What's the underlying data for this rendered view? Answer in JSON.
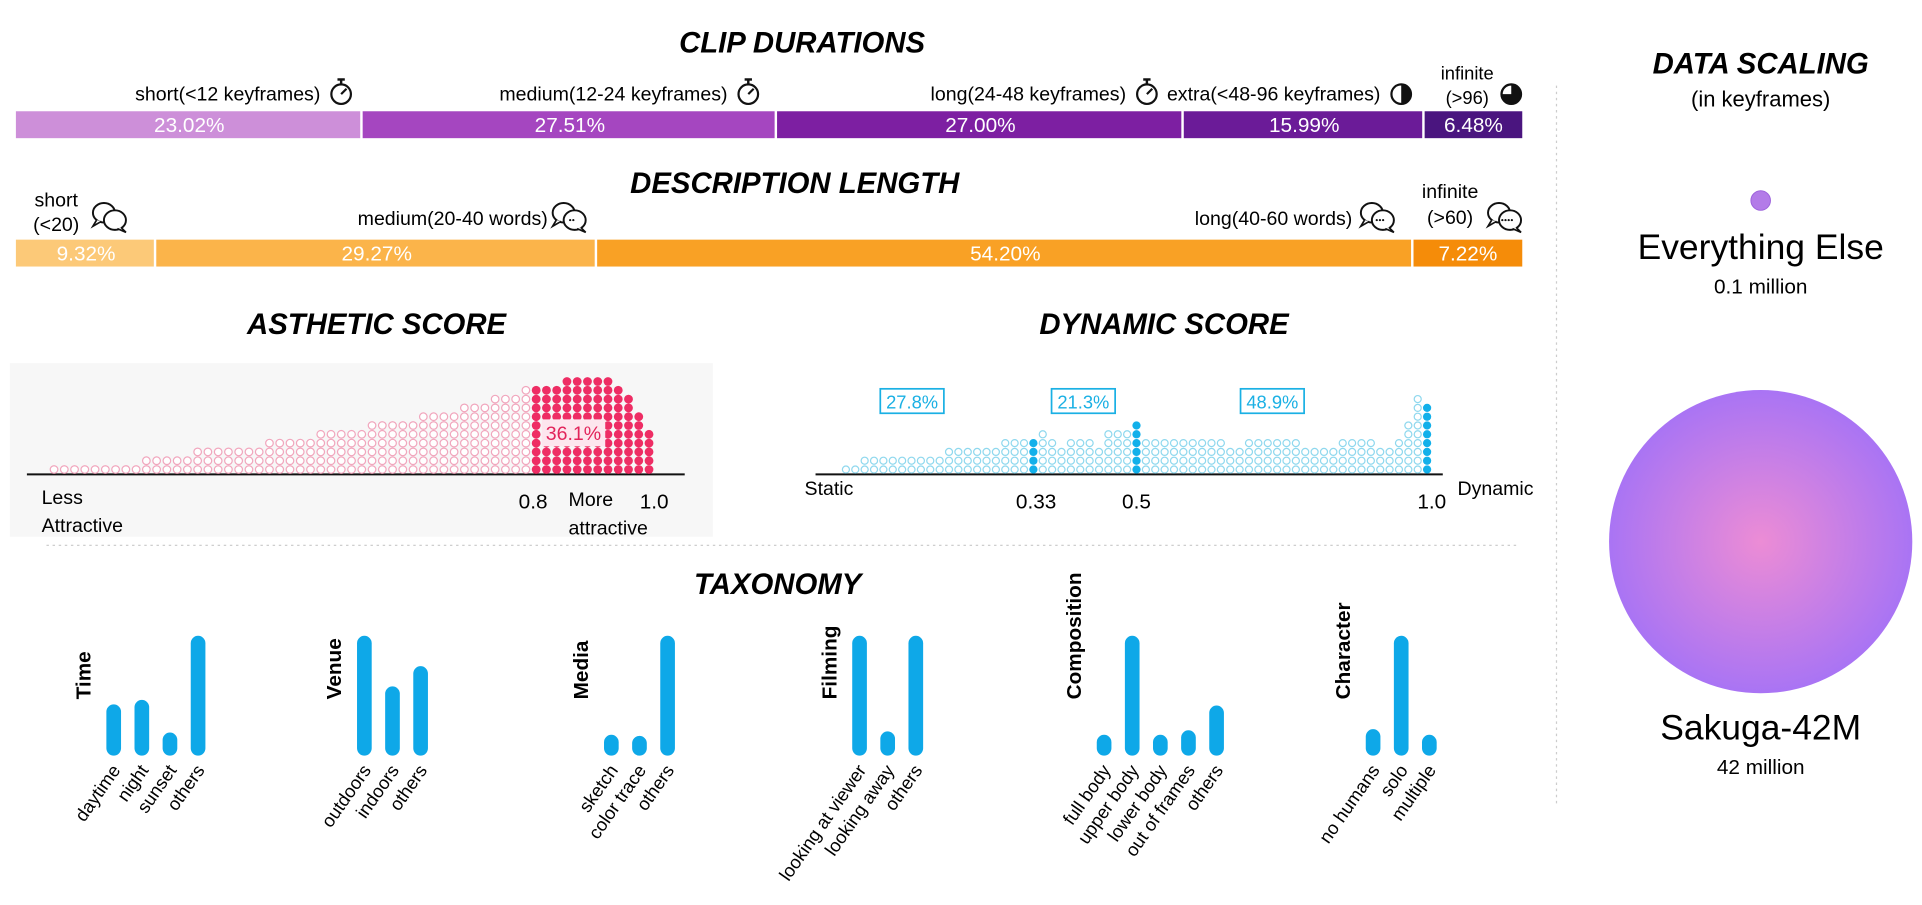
{
  "clip_durations": {
    "title": "CLIP DURATIONS",
    "segments": [
      {
        "label": "short(<12 keyframes)",
        "value_text": "23.02%",
        "value": 23.02,
        "color": "#cd8fd9",
        "icon": "stopwatch-icon"
      },
      {
        "label": "medium(12-24 keyframes)",
        "value_text": "27.51%",
        "value": 27.51,
        "color": "#a546c0",
        "icon": "stopwatch-icon"
      },
      {
        "label": "long(24-48 keyframes)",
        "value_text": "27.00%",
        "value": 27.0,
        "color": "#7d1fa2",
        "icon": "stopwatch-icon"
      },
      {
        "label": "extra(<48-96 keyframes)",
        "value_text": "15.99%",
        "value": 15.99,
        "color": "#6b1b98",
        "icon": "half-clock-icon"
      },
      {
        "label_lines": [
          "infinite",
          "(>96)"
        ],
        "value_text": "6.48%",
        "value": 6.48,
        "color": "#4a157f",
        "icon": "full-clock-icon"
      }
    ]
  },
  "description_length": {
    "title": "DESCRIPTION LENGTH",
    "segments": [
      {
        "label_lines": [
          "short",
          "(<20)"
        ],
        "value_text": "9.32%",
        "value": 9.32,
        "color": "#fcc978",
        "icon": "chat-bubble-icon"
      },
      {
        "label": "medium(20-40 words)",
        "value_text": "29.27%",
        "value": 29.27,
        "color": "#fbb44a",
        "icon": "chat-bubble-icon"
      },
      {
        "label": "long(40-60 words)",
        "value_text": "54.20%",
        "value": 54.2,
        "color": "#f9a125",
        "icon": "chat-bubble-icon"
      },
      {
        "label_lines": [
          "infinite",
          "(>60)"
        ],
        "value_text": "7.22%",
        "value": 7.22,
        "color": "#f58c09",
        "icon": "chat-bubble-icon"
      }
    ]
  },
  "chart_data": [
    {
      "type": "dot-histogram",
      "title": "ASTHETIC SCORE",
      "xlim": [
        0,
        1.0
      ],
      "ticks": [
        {
          "value": 0.8,
          "text": "0.8"
        },
        {
          "value": 1.0,
          "text": "1.0"
        }
      ],
      "left_label": [
        "Less",
        "Attractive"
      ],
      "right_label": [
        "More",
        "attractive"
      ],
      "highlight_from": 0.8,
      "highlight_text": "36.1%",
      "colors": {
        "outline": "#f1a6bd",
        "fill": "#ee2d64",
        "label": "#e2245b"
      },
      "column_counts": [
        1,
        1,
        1,
        1,
        1,
        1,
        1,
        1,
        1,
        2,
        2,
        2,
        2,
        2,
        3,
        3,
        3,
        3,
        3,
        3,
        3,
        4,
        4,
        4,
        4,
        4,
        5,
        5,
        5,
        5,
        5,
        6,
        6,
        6,
        6,
        6,
        7,
        7,
        7,
        7,
        8,
        8,
        8,
        9,
        9,
        9,
        10,
        10,
        10,
        10,
        11,
        11,
        11,
        11,
        11,
        10,
        9,
        7,
        5
      ]
    },
    {
      "type": "dot-histogram",
      "title": "DYNAMIC SCORE",
      "xlim": [
        0,
        1.0
      ],
      "ticks": [
        {
          "value": 0.33,
          "text": "0.33"
        },
        {
          "value": 0.5,
          "text": "0.5"
        },
        {
          "value": 1.0,
          "text": "1.0"
        }
      ],
      "left_label": [
        "Static"
      ],
      "right_label": [
        "Dynamic"
      ],
      "markers": [
        0.33,
        0.5,
        1.0
      ],
      "region_labels": [
        {
          "text": "27.8%",
          "x": 0.12
        },
        {
          "text": "21.3%",
          "x": 0.41
        },
        {
          "text": "48.9%",
          "x": 0.73
        }
      ],
      "colors": {
        "outline": "#8fd8ee",
        "fill": "#12b0ea",
        "label": "#1ab0e4"
      },
      "column_counts": [
        1,
        1,
        2,
        2,
        2,
        2,
        2,
        2,
        2,
        2,
        2,
        3,
        3,
        3,
        3,
        3,
        3,
        4,
        4,
        4,
        4,
        5,
        4,
        3,
        4,
        4,
        4,
        3,
        5,
        5,
        5,
        6,
        4,
        4,
        4,
        4,
        4,
        4,
        4,
        4,
        4,
        3,
        3,
        4,
        4,
        4,
        4,
        4,
        4,
        3,
        3,
        3,
        3,
        4,
        4,
        4,
        4,
        3,
        3,
        4,
        6,
        9,
        8
      ]
    },
    {
      "type": "bar",
      "title": "TAXONOMY",
      "groups": [
        {
          "name": "Time",
          "categories": [
            "daytime",
            "night",
            "sunset",
            "others"
          ],
          "values": [
            0.39,
            0.43,
            0.14,
            1.0
          ]
        },
        {
          "name": "Venue",
          "categories": [
            "outdoors",
            "indoors",
            "others"
          ],
          "values": [
            1.0,
            0.55,
            0.73
          ]
        },
        {
          "name": "Media",
          "categories": [
            "sketch",
            "color trace",
            "others"
          ],
          "values": [
            0.12,
            0.11,
            1.0
          ]
        },
        {
          "name": "Filming",
          "categories": [
            "looking at viewer",
            "looking away",
            "others"
          ],
          "values": [
            1.0,
            0.15,
            1.0
          ]
        },
        {
          "name": "Composition",
          "categories": [
            "full body",
            "upper body",
            "lower body",
            "out of frames",
            "others"
          ],
          "values": [
            0.12,
            1.0,
            0.12,
            0.16,
            0.38
          ]
        },
        {
          "name": "Character",
          "categories": [
            "no humans",
            "solo",
            "multiple"
          ],
          "values": [
            0.17,
            1.0,
            0.12
          ]
        }
      ],
      "bar_color": "#0ea8e8"
    }
  ],
  "data_scaling": {
    "title": "DATA SCALING",
    "subtitle": "(in keyframes)",
    "items": [
      {
        "name": "Everything Else",
        "value_text": "0.1 million",
        "value_millions": 0.1
      },
      {
        "name": "Sakuga-42M",
        "value_text": "42 million",
        "value_millions": 42
      }
    ],
    "colors": {
      "center": "#ec8cd5",
      "edge": "#a974f4"
    }
  }
}
